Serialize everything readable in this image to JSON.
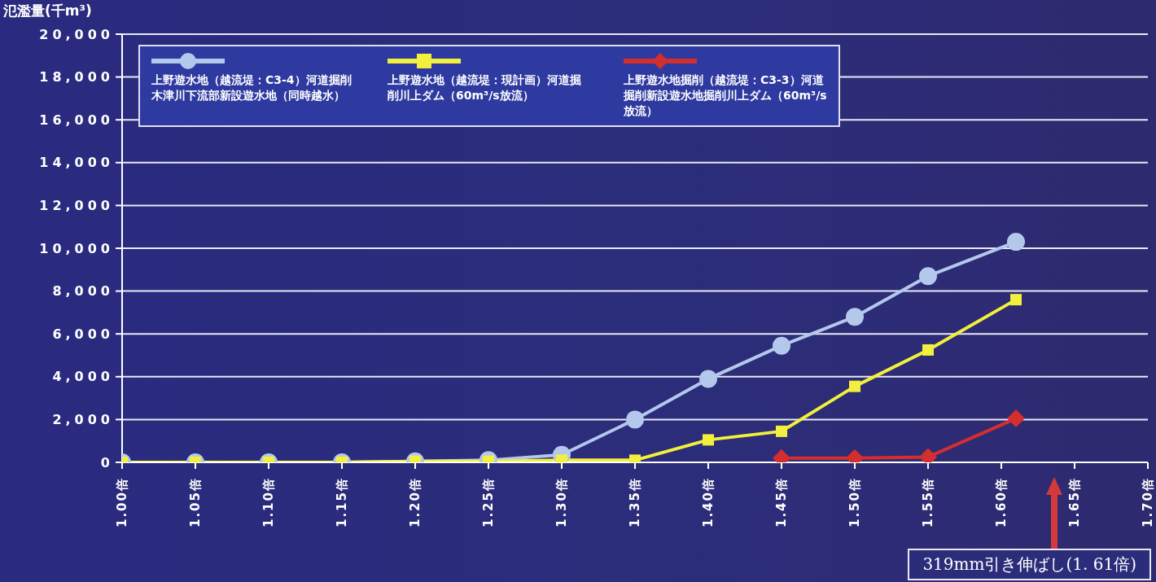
{
  "chart_data": {
    "type": "line",
    "ylabel": "氾濫量(千m³)",
    "xlim": [
      1.0,
      1.7
    ],
    "xticks": [
      {
        "value": 1.0,
        "label": "1.00倍"
      },
      {
        "value": 1.05,
        "label": "1.05倍"
      },
      {
        "value": 1.1,
        "label": "1.10倍"
      },
      {
        "value": 1.15,
        "label": "1.15倍"
      },
      {
        "value": 1.2,
        "label": "1.20倍"
      },
      {
        "value": 1.25,
        "label": "1.25倍"
      },
      {
        "value": 1.3,
        "label": "1.30倍"
      },
      {
        "value": 1.35,
        "label": "1.35倍"
      },
      {
        "value": 1.4,
        "label": "1.40倍"
      },
      {
        "value": 1.45,
        "label": "1.45倍"
      },
      {
        "value": 1.5,
        "label": "1.50倍"
      },
      {
        "value": 1.55,
        "label": "1.55倍"
      },
      {
        "value": 1.6,
        "label": "1.60倍"
      },
      {
        "value": 1.65,
        "label": "1.65倍"
      },
      {
        "value": 1.7,
        "label": "1.70倍"
      }
    ],
    "ylim": [
      0,
      20000
    ],
    "yticks": [
      0,
      {
        "value": 2000,
        "label": "2,000"
      },
      {
        "value": 4000,
        "label": "4,000"
      },
      {
        "value": 6000,
        "label": "6,000"
      },
      {
        "value": 8000,
        "label": "8,000"
      },
      {
        "value": 10000,
        "label": "10,000"
      },
      {
        "value": 12000,
        "label": "12,000"
      },
      {
        "value": 14000,
        "label": "14,000"
      },
      {
        "value": 16000,
        "label": "16,000"
      },
      {
        "value": 18000,
        "label": "18,000"
      },
      {
        "value": 20000,
        "label": "20,000"
      }
    ],
    "grid": "y",
    "legend": "top left",
    "series": [
      {
        "name": "上野遊水地（越流堤：C3-4）河道掘削木津川下流部新設遊水地（同時越水）",
        "color": "#b4c8ec",
        "marker": "circle",
        "x": [
          1.0,
          1.05,
          1.1,
          1.15,
          1.2,
          1.25,
          1.3,
          1.35,
          1.4,
          1.45,
          1.5,
          1.55,
          1.61
        ],
        "values": [
          0,
          0,
          0,
          0,
          50,
          100,
          350,
          2000,
          3900,
          5450,
          6800,
          8700,
          10300
        ]
      },
      {
        "name": "上野遊水地（越流堤：現計画）河道掘削川上ダム（60m³/s放流）",
        "color": "#f2f03c",
        "marker": "square",
        "x": [
          1.0,
          1.05,
          1.1,
          1.15,
          1.2,
          1.25,
          1.3,
          1.35,
          1.4,
          1.45,
          1.5,
          1.55,
          1.61
        ],
        "values": [
          0,
          0,
          0,
          0,
          50,
          50,
          100,
          100,
          1050,
          1450,
          3550,
          5250,
          7600
        ]
      },
      {
        "name": "上野遊水地掘削（越流堤：C3-3）河道掘削新設遊水地掘削川上ダム（60m³/s放流）",
        "color": "#d42e2e",
        "marker": "diamond",
        "x": [
          1.45,
          1.5,
          1.55,
          1.61
        ],
        "values": [
          200,
          200,
          250,
          2050
        ]
      }
    ],
    "annotations": [
      "319mm引き伸ばし(1. 61倍)"
    ]
  }
}
